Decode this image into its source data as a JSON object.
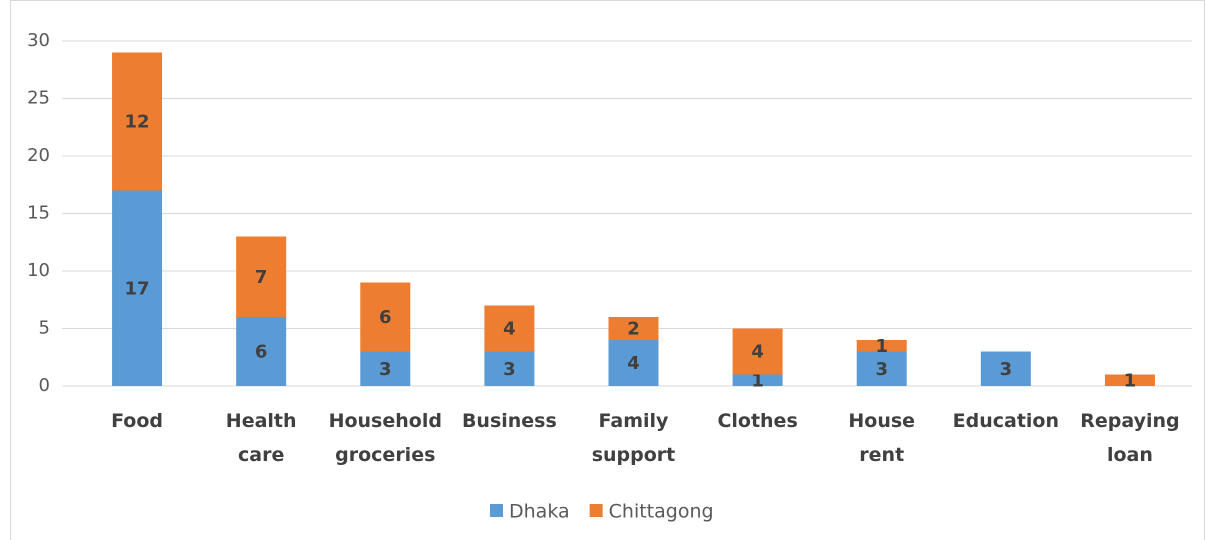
{
  "chart_data": {
    "type": "stacked_bar",
    "categories": [
      "Food",
      "Health care",
      "Household groceries",
      "Business",
      "Family support",
      "Clothes",
      "House rent",
      "Education",
      "Repaying loan"
    ],
    "series": [
      {
        "name": "Dhaka",
        "color": "#5b9bd5",
        "values": [
          17,
          6,
          3,
          3,
          4,
          1,
          3,
          3,
          null
        ]
      },
      {
        "name": "Chittagong",
        "color": "#ed7d31",
        "values": [
          12,
          7,
          6,
          4,
          2,
          4,
          1,
          null,
          1
        ]
      }
    ],
    "ylim": [
      0,
      30
    ],
    "yticks": [
      0,
      5,
      10,
      15,
      20,
      25,
      30
    ],
    "grid": true,
    "legend": "bottom"
  }
}
